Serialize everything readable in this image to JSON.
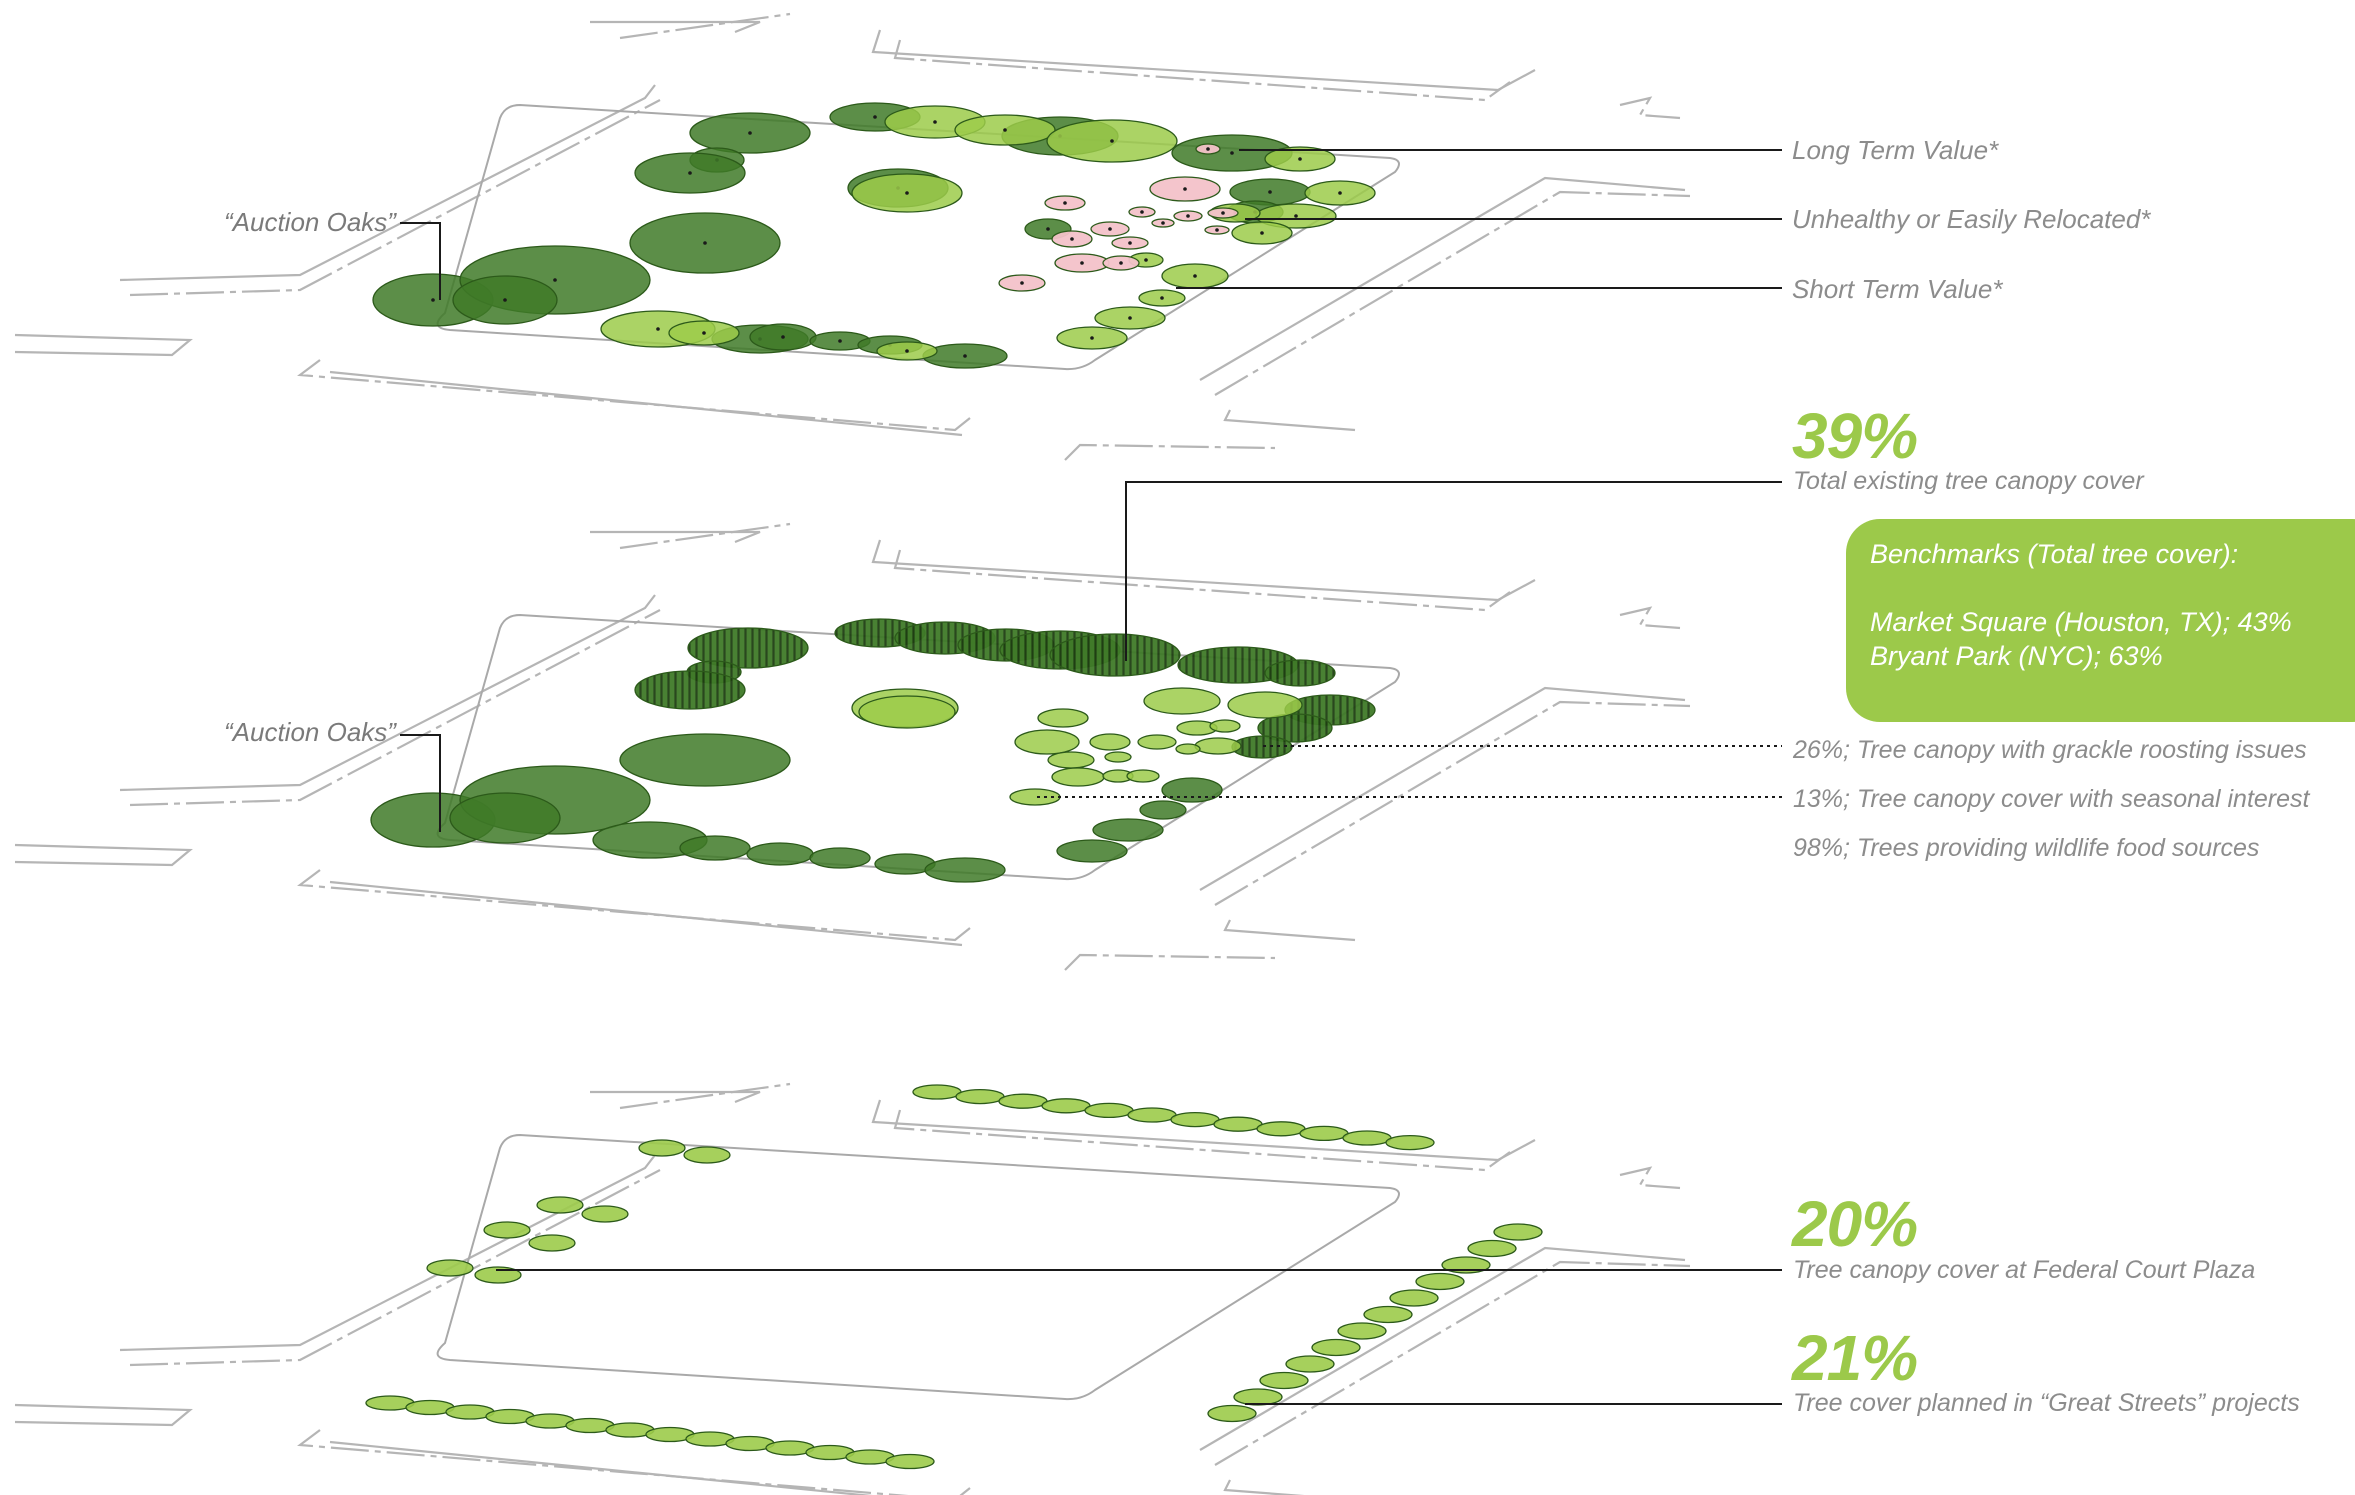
{
  "colors": {
    "dark_green": "#3f7a28",
    "light_green": "#9ccb4a",
    "pink": "#f3c2c9",
    "accent": "#9cc94a",
    "label_gray": "#8c8c8c"
  },
  "layer1": {
    "auction_oaks": "“Auction Oaks”",
    "legend": {
      "long_term": "Long Term Value*",
      "unhealthy": "Unhealthy or Easily Relocated*",
      "short_term": "Short Term Value*"
    }
  },
  "layer2": {
    "auction_oaks": "“Auction Oaks”",
    "total_pct": "39%",
    "total_label": "Total existing tree canopy cover",
    "benchmarks": {
      "title": "Benchmarks (Total tree cover):",
      "line1": "Market Square (Houston, TX); 43%",
      "line2": "Bryant Park (NYC); 63%"
    },
    "stats": {
      "grackle": "26%; Tree canopy with grackle roosting issues",
      "seasonal": "13%; Tree canopy cover with seasonal interest",
      "wildlife": "98%; Trees providing wildlife food sources"
    }
  },
  "layer3": {
    "federal_pct": "20%",
    "federal_label": "Tree canopy cover at Federal Court Plaza",
    "great_pct": "21%",
    "great_label": "Tree cover planned in “Great Streets” projects"
  }
}
